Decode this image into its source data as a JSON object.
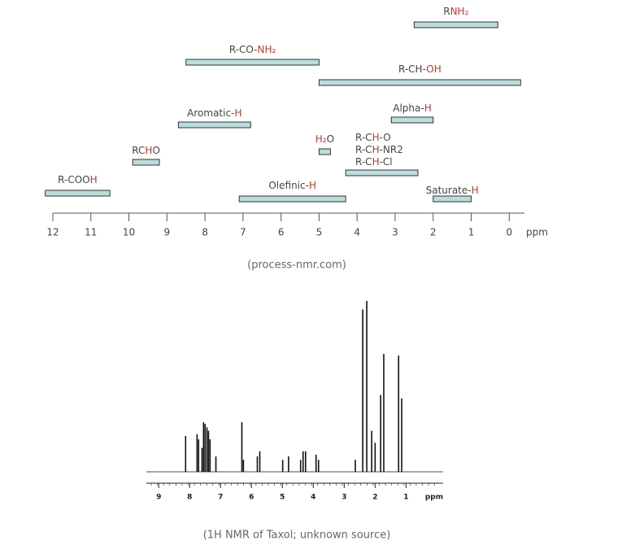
{
  "chart_data": [
    {
      "type": "range-bar",
      "caption": "(process-nmr.com)",
      "xlabel": "ppm",
      "xlim": [
        12,
        -0.4
      ],
      "xticks": [
        12,
        11,
        10,
        9,
        8,
        7,
        6,
        5,
        4,
        3,
        2,
        1,
        0
      ],
      "color": "#b9dedb",
      "highlight": "#c0392b",
      "bars": [
        {
          "range": [
            2.5,
            0.3
          ],
          "lines": [
            [
              {
                "text": "R"
              },
              {
                "text": "NH₂",
                "hl": true
              }
            ]
          ]
        },
        {
          "range": [
            8.5,
            5.0
          ],
          "lines": [
            [
              {
                "text": "R-CO-"
              },
              {
                "text": "NH₂",
                "hl": true
              }
            ]
          ]
        },
        {
          "range": [
            5.0,
            -0.3
          ],
          "lines": [
            [
              {
                "text": "R-CH-"
              },
              {
                "text": "OH",
                "hl": true
              }
            ]
          ]
        },
        {
          "range": [
            8.7,
            6.8
          ],
          "lines": [
            [
              {
                "text": "Aromatic-"
              },
              {
                "text": "H",
                "hl": true
              }
            ]
          ]
        },
        {
          "range": [
            3.1,
            2.0
          ],
          "lines": [
            [
              {
                "text": "Alpha-"
              },
              {
                "text": "H",
                "hl": true
              }
            ]
          ]
        },
        {
          "range": [
            5.0,
            4.7
          ],
          "lines": [
            [
              {
                "text": "H₂",
                "hl": true
              },
              {
                "text": "O"
              }
            ]
          ]
        },
        {
          "range": [
            9.9,
            9.2
          ],
          "lines": [
            [
              {
                "text": "RC"
              },
              {
                "text": "H",
                "hl": true
              },
              {
                "text": "O"
              }
            ]
          ]
        },
        {
          "range": [
            4.3,
            2.4
          ],
          "lines": [
            [
              {
                "text": "R-C"
              },
              {
                "text": "H",
                "hl": true
              },
              {
                "text": "-O"
              }
            ],
            [
              {
                "text": "R-C"
              },
              {
                "text": "H",
                "hl": true
              },
              {
                "text": "-NR2"
              }
            ],
            [
              {
                "text": "R-C"
              },
              {
                "text": "H",
                "hl": true
              },
              {
                "text": "-Cl"
              }
            ]
          ]
        },
        {
          "range": [
            12.2,
            10.5
          ],
          "lines": [
            [
              {
                "text": "R-COO"
              },
              {
                "text": "H",
                "hl": true
              }
            ]
          ]
        },
        {
          "range": [
            7.1,
            4.3
          ],
          "lines": [
            [
              {
                "text": "Olefinic-"
              },
              {
                "text": "H",
                "hl": true
              }
            ]
          ]
        },
        {
          "range": [
            2.0,
            1.0
          ],
          "lines": [
            [
              {
                "text": "Saturate-"
              },
              {
                "text": "H",
                "hl": true
              }
            ]
          ]
        }
      ]
    },
    {
      "type": "spectrum",
      "caption": "(1H NMR of Taxol; unknown source)",
      "xlabel": "ppm",
      "xlim": [
        9.4,
        -0.2
      ],
      "xticks": [
        9,
        8,
        7,
        6,
        5,
        4,
        3,
        2,
        1
      ],
      "color": "#111",
      "x": [
        8.13,
        7.76,
        7.71,
        7.6,
        7.55,
        7.5,
        7.44,
        7.39,
        7.34,
        7.15,
        6.31,
        6.26,
        5.81,
        5.73,
        4.99,
        4.8,
        4.41,
        4.33,
        4.25,
        3.91,
        3.83,
        2.64,
        2.4,
        2.27,
        2.11,
        2.0,
        1.82,
        1.72,
        1.24,
        1.14
      ],
      "values": [
        21,
        22,
        19,
        14,
        29,
        28,
        26,
        24,
        19,
        9,
        29,
        7,
        9,
        12,
        7,
        9,
        7,
        12,
        12,
        10,
        7,
        7,
        95,
        100,
        24,
        17,
        45,
        69,
        68,
        43
      ]
    }
  ]
}
